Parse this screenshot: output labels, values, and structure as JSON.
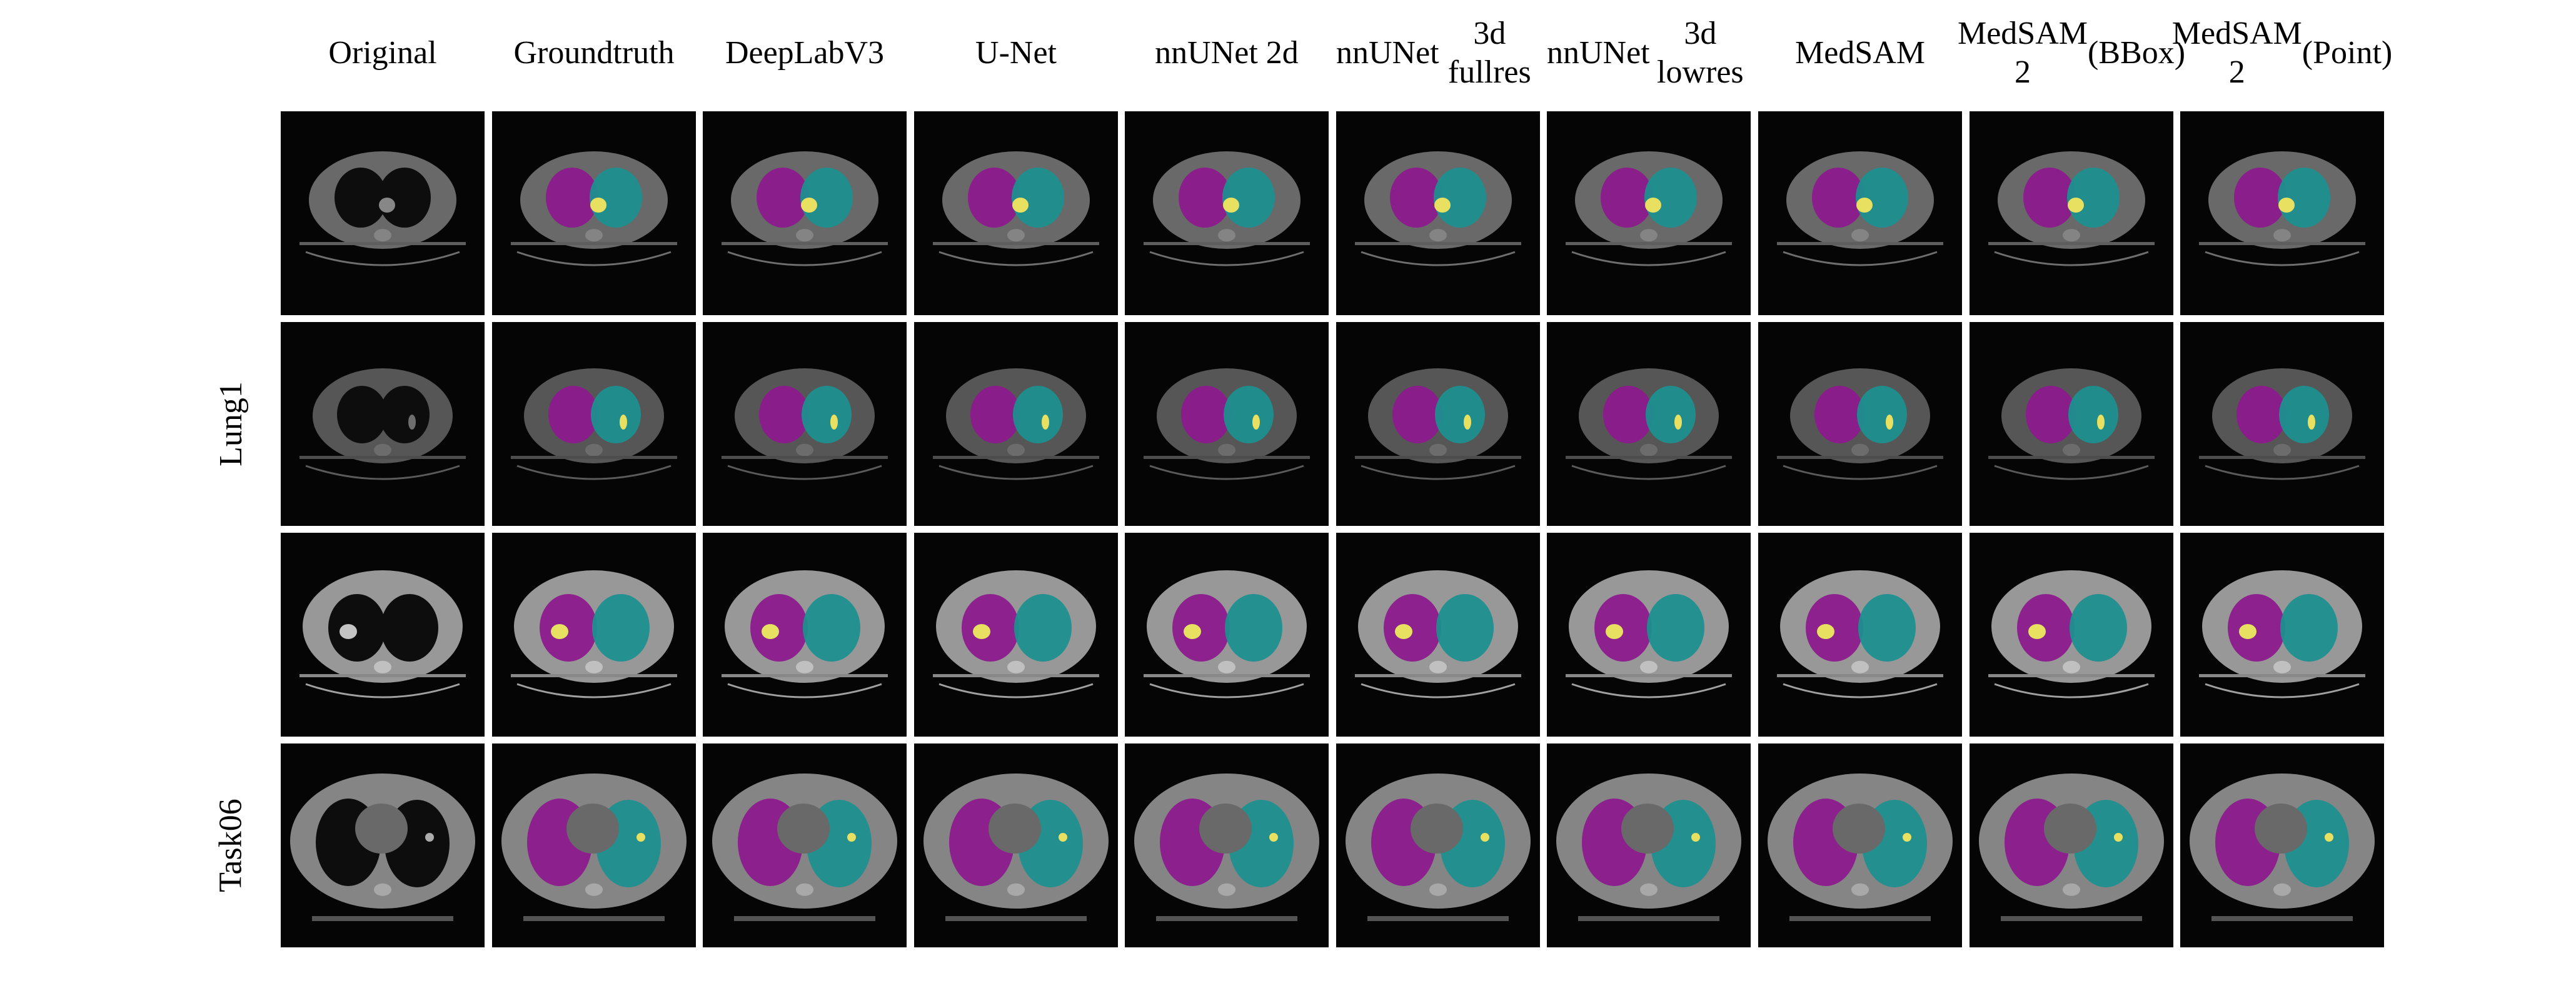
{
  "columns": [
    {
      "id": "original",
      "lines": [
        "Original"
      ]
    },
    {
      "id": "ground-truth",
      "lines": [
        "Ground",
        "truth"
      ]
    },
    {
      "id": "deeplabv3",
      "lines": [
        "DeepLabV3"
      ]
    },
    {
      "id": "u-net",
      "lines": [
        "U-Net"
      ]
    },
    {
      "id": "nnunet-2d",
      "lines": [
        "nnUNet 2d"
      ]
    },
    {
      "id": "nnunet-3d-fullres",
      "lines": [
        "nnUNet",
        "3d fullres"
      ]
    },
    {
      "id": "nnunet-3d-lowres",
      "lines": [
        "nnUNet",
        "3d lowres"
      ]
    },
    {
      "id": "medsam",
      "lines": [
        "MedSAM"
      ]
    },
    {
      "id": "medsam2-bbox",
      "lines": [
        "MedSAM 2",
        "(BBox)"
      ]
    },
    {
      "id": "medsam2-point",
      "lines": [
        "MedSAM 2",
        "(Point)"
      ]
    }
  ],
  "row_groups": [
    {
      "label": "Lung1",
      "rows": [
        0,
        1,
        2
      ]
    },
    {
      "label": "Task06",
      "rows": [
        3
      ]
    }
  ],
  "rows": [
    {
      "brightness": "dark"
    },
    {
      "brightness": "dim"
    },
    {
      "brightness": "bright"
    },
    {
      "brightness": "wide"
    }
  ],
  "colors": {
    "left_lung": "#8c1a8c",
    "right_lung": "#1e8f8f",
    "tumor": "#e8e060",
    "background": "#050505",
    "body": "#6e6e6e",
    "lung_unlabeled": "#1c1c1c"
  }
}
